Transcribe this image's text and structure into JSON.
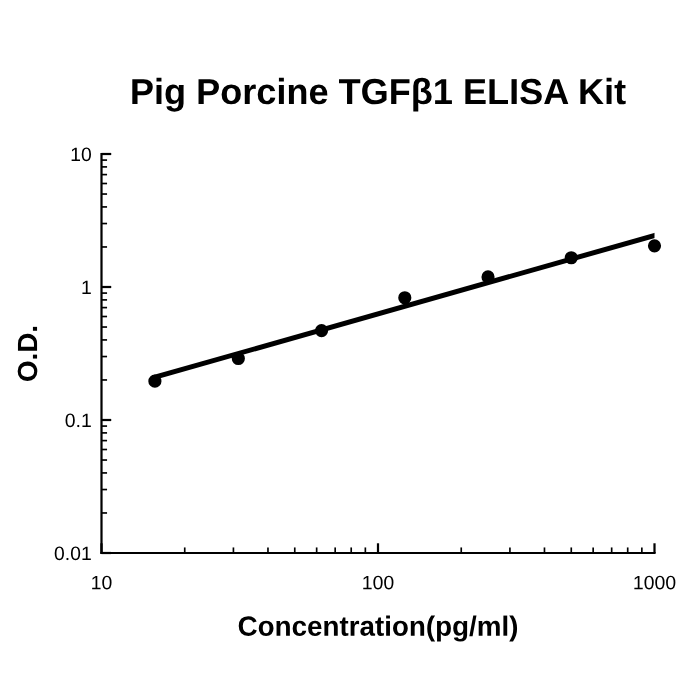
{
  "chart_data": {
    "type": "scatter",
    "title": "Pig Porcine TGFβ1 ELISA Kit",
    "xlabel": "Concentration(pg/ml)",
    "ylabel": "O.D.",
    "x": [
      15.6,
      31.25,
      62.5,
      125,
      250,
      500,
      1000
    ],
    "series": [
      {
        "color": "#000000",
        "marker": "circle",
        "values": [
          0.196,
          0.29,
          0.47,
          0.83,
          1.19,
          1.66,
          2.04
        ]
      },
      {
        "type": "line",
        "color": "#000000",
        "x": [
          15.6,
          1000
        ],
        "values": [
          0.21,
          2.44
        ],
        "line_style": "solid",
        "marker": "none"
      }
    ],
    "log": "xy",
    "xlim": [
      10,
      1000
    ],
    "ylim": [
      0.01,
      10
    ],
    "xticks": [
      10,
      100,
      1000
    ],
    "yticks": [
      0.01,
      0.1,
      1,
      10
    ],
    "grid": false,
    "legend": false
  }
}
